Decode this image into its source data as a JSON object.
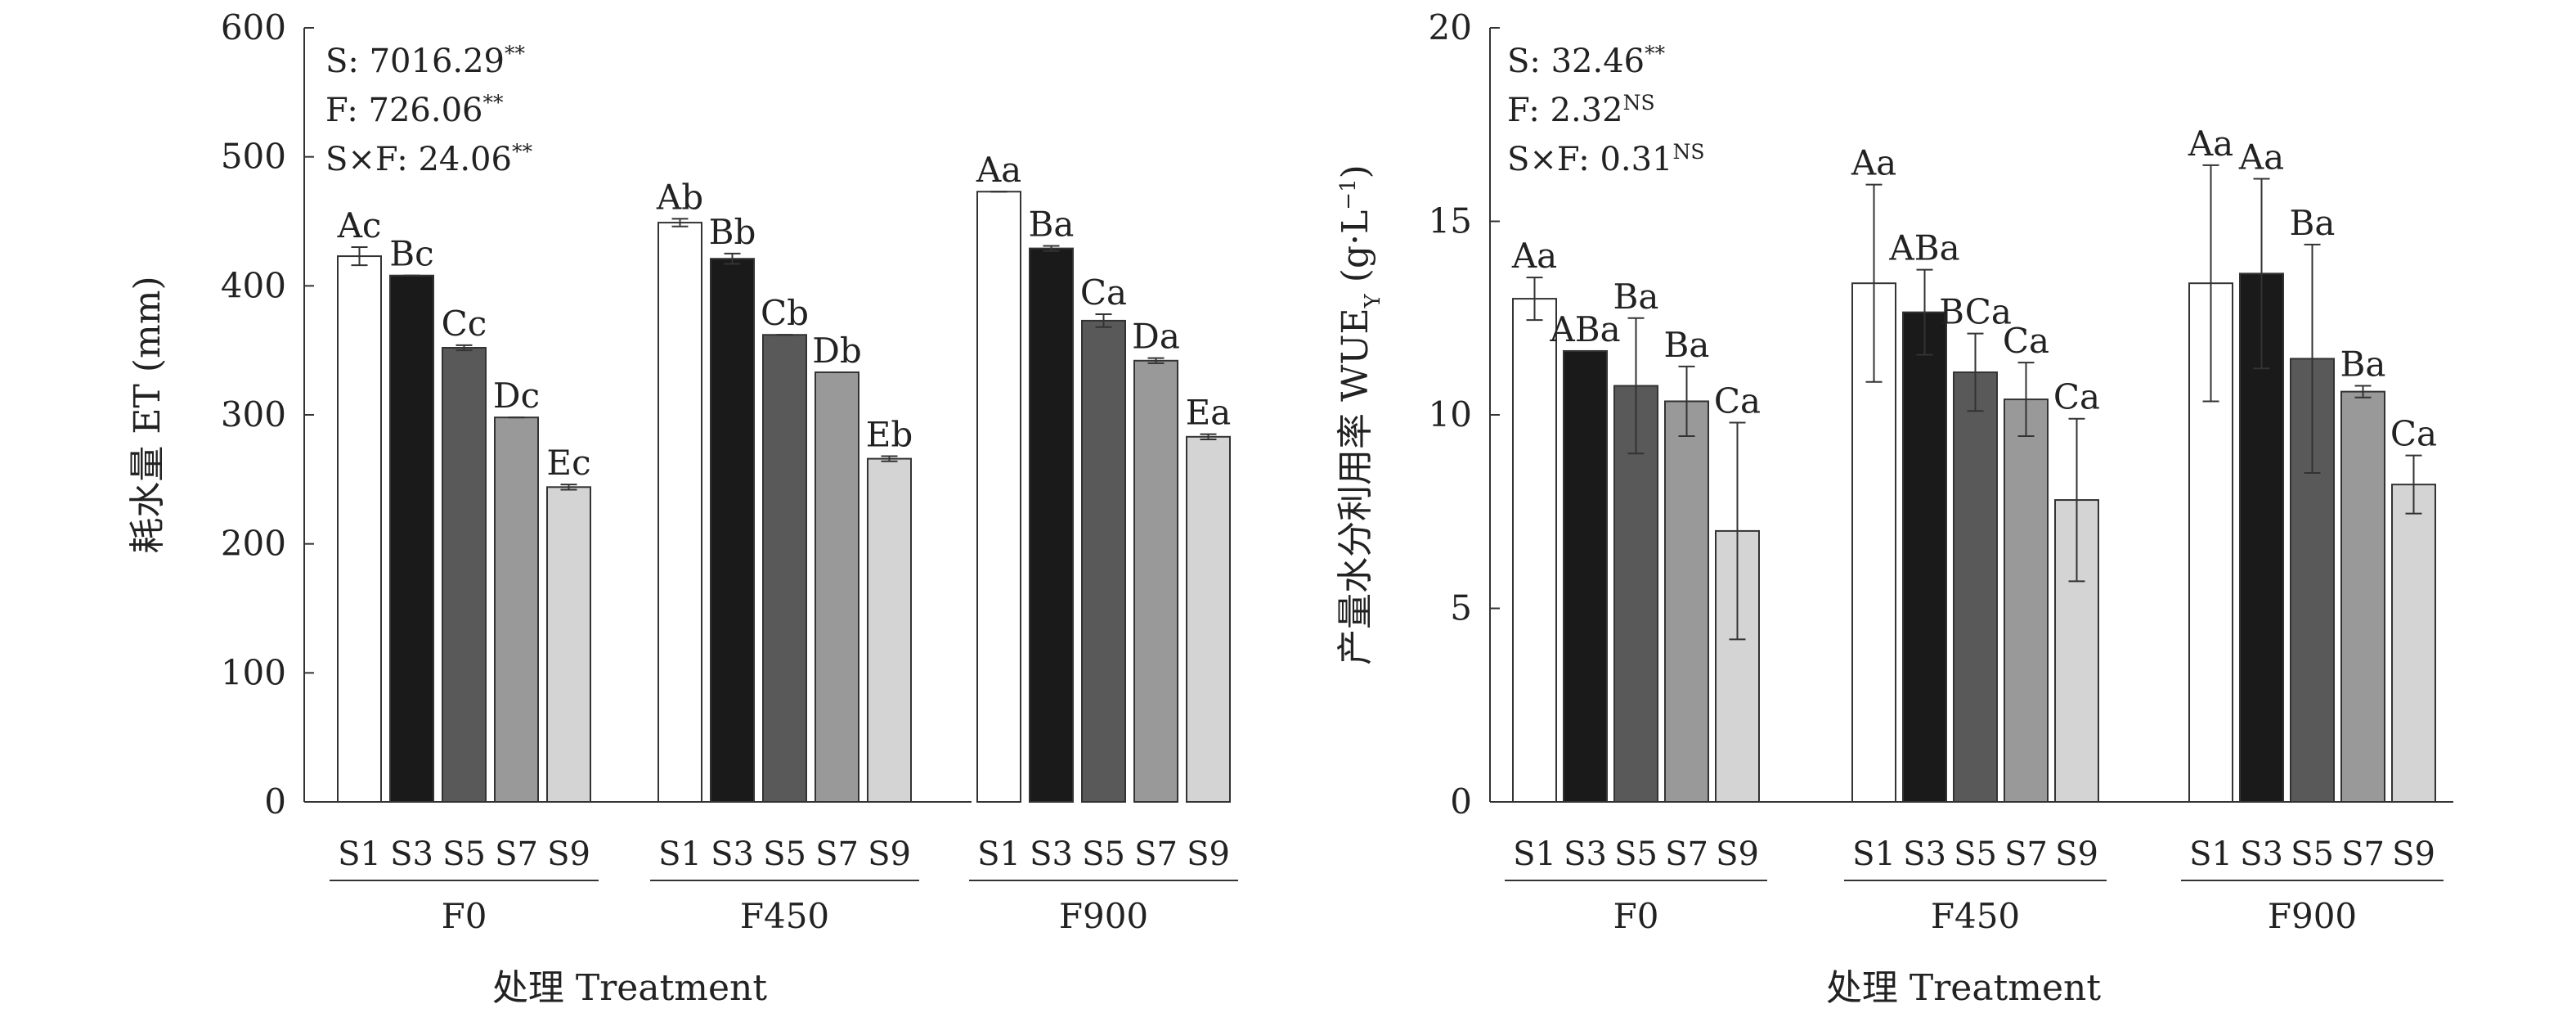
{
  "chart_data": [
    {
      "type": "bar",
      "ylabel": "耗水量 ET (mm)",
      "xlabel": "处理 Treatment",
      "ylim": [
        0,
        600
      ],
      "yticks": [
        0,
        100,
        200,
        300,
        400,
        500,
        600
      ],
      "groups": [
        "F0",
        "F450",
        "F900"
      ],
      "categories": [
        "S1",
        "S3",
        "S5",
        "S7",
        "S9"
      ],
      "colors": [
        "#ffffff",
        "#1a1a1a",
        "#595959",
        "#999999",
        "#d4d4d4"
      ],
      "values": [
        [
          423,
          408,
          352,
          298,
          244
        ],
        [
          449,
          421,
          362,
          333,
          266
        ],
        [
          473,
          429,
          373,
          342,
          283
        ]
      ],
      "errors": [
        [
          7,
          0,
          2,
          0,
          2
        ],
        [
          3,
          4,
          0,
          0,
          2
        ],
        [
          0,
          2,
          5,
          2,
          2
        ]
      ],
      "labels": [
        [
          "Ac",
          "Bc",
          "Cc",
          "Dc",
          "Ec"
        ],
        [
          "Ab",
          "Bb",
          "Cb",
          "Db",
          "Eb"
        ],
        [
          "Aa",
          "Ba",
          "Ca",
          "Da",
          "Ea"
        ]
      ],
      "stats": [
        {
          "text": "S: 7016.29",
          "sup": "**"
        },
        {
          "text": "F: 726.06",
          "sup": "**"
        },
        {
          "text": "S×F: 24.06",
          "sup": "**"
        }
      ]
    },
    {
      "type": "bar",
      "ylabel": "产量水分利用率 WUE",
      "ylabel_sub": "Y",
      "ylabel_unit": " (g·L",
      "ylabel_unit_sup": "−1",
      "ylabel_end": ")",
      "xlabel": "处理 Treatment",
      "ylim": [
        0,
        20
      ],
      "yticks": [
        0,
        5,
        10,
        15,
        20
      ],
      "groups": [
        "F0",
        "F450",
        "F900"
      ],
      "categories": [
        "S1",
        "S3",
        "S5",
        "S7",
        "S9"
      ],
      "colors": [
        "#ffffff",
        "#1a1a1a",
        "#595959",
        "#999999",
        "#d4d4d4"
      ],
      "values": [
        [
          13.0,
          11.65,
          10.75,
          10.35,
          7.0
        ],
        [
          13.4,
          12.65,
          11.1,
          10.4,
          7.8
        ],
        [
          13.4,
          13.65,
          11.45,
          10.6,
          8.2
        ]
      ],
      "errors": [
        [
          0.55,
          0.0,
          1.75,
          0.9,
          2.8
        ],
        [
          2.55,
          1.1,
          1.0,
          0.95,
          2.1
        ],
        [
          3.05,
          2.45,
          2.95,
          0.15,
          0.75
        ]
      ],
      "labels": [
        [
          "Aa",
          "ABa",
          "Ba",
          "Ba",
          "Ca"
        ],
        [
          "Aa",
          "ABa",
          "BCa",
          "Ca",
          "Ca"
        ],
        [
          "Aa",
          "Aa",
          "Ba",
          "Ba",
          "Ca"
        ]
      ],
      "stats": [
        {
          "text": "S: 32.46",
          "sup": "**"
        },
        {
          "text": "F: 2.32",
          "sup": "NS"
        },
        {
          "text": "S×F: 0.31",
          "sup": "NS"
        }
      ]
    }
  ]
}
